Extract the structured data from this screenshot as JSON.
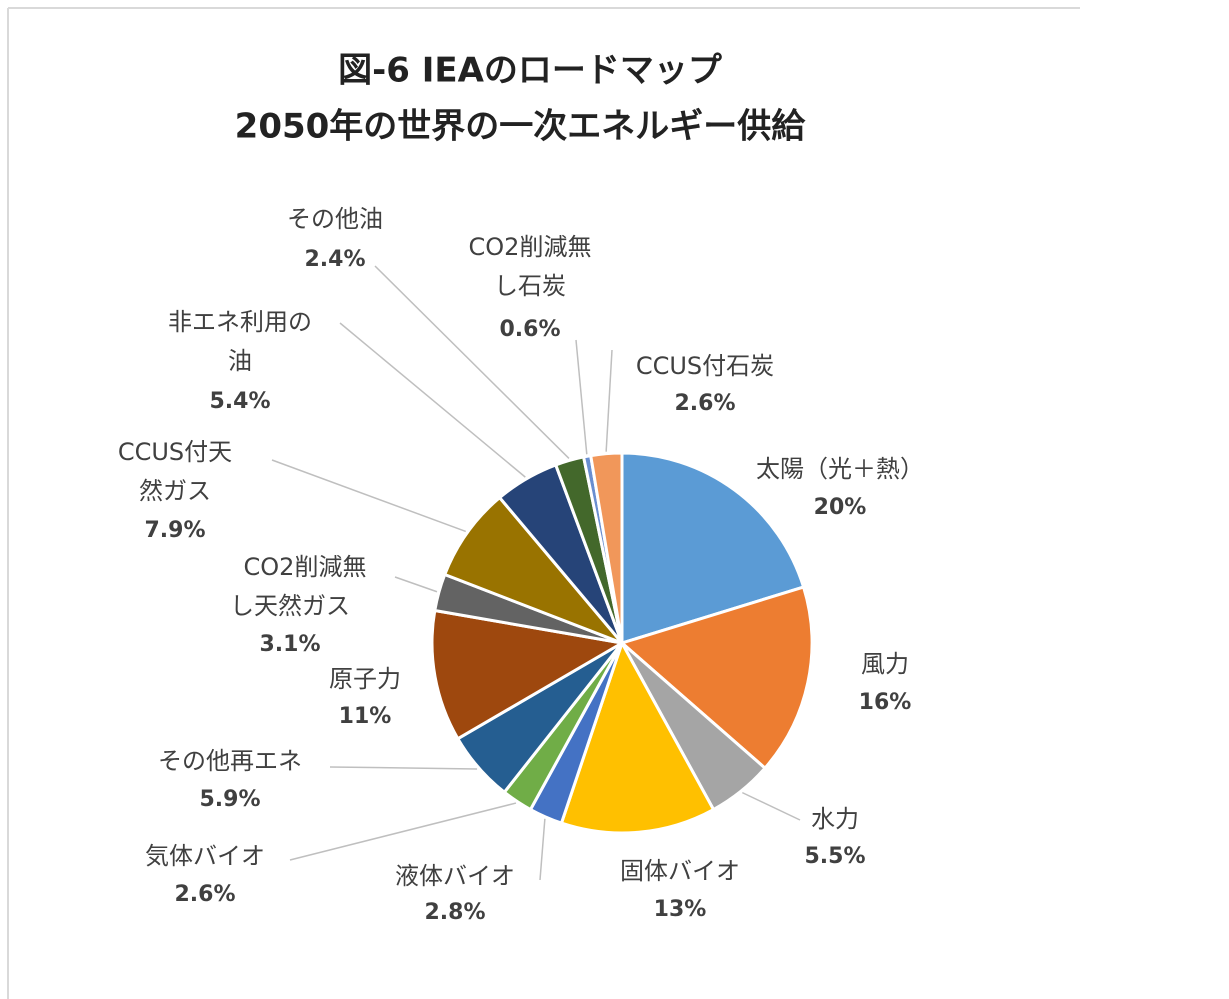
{
  "chart_data": {
    "type": "pie",
    "title": "図-6  IEAのロードマップ",
    "subtitle": "2050年の世界の一次エネルギー供給",
    "categories": [
      "太陽（光＋熱）",
      "風力",
      "水力",
      "固体バイオ",
      "液体バイオ",
      "気体バイオ",
      "その他再エネ",
      "原子力",
      "CO2削減無し天然ガス",
      "CCUS付天然ガス",
      "非エネ利用の油",
      "その他油",
      "CO2削減無し石炭",
      "CCUS付石炭"
    ],
    "values": [
      20,
      16,
      5.5,
      13,
      2.8,
      2.6,
      5.9,
      11,
      3.1,
      7.9,
      5.4,
      2.4,
      0.6,
      2.6
    ],
    "value_labels": [
      "20%",
      "16%",
      "5.5%",
      "13%",
      "2.8%",
      "2.6%",
      "5.9%",
      "11%",
      "3.1%",
      "7.9%",
      "5.4%",
      "2.4%",
      "0.6%",
      "2.6%"
    ],
    "colors": [
      "#5b9bd5",
      "#ed7d31",
      "#a5a5a5",
      "#ffc000",
      "#4472c4",
      "#70ad47",
      "#255e91",
      "#9e480e",
      "#636363",
      "#997300",
      "#264478",
      "#43682b",
      "#698ed0",
      "#f1975a"
    ]
  }
}
